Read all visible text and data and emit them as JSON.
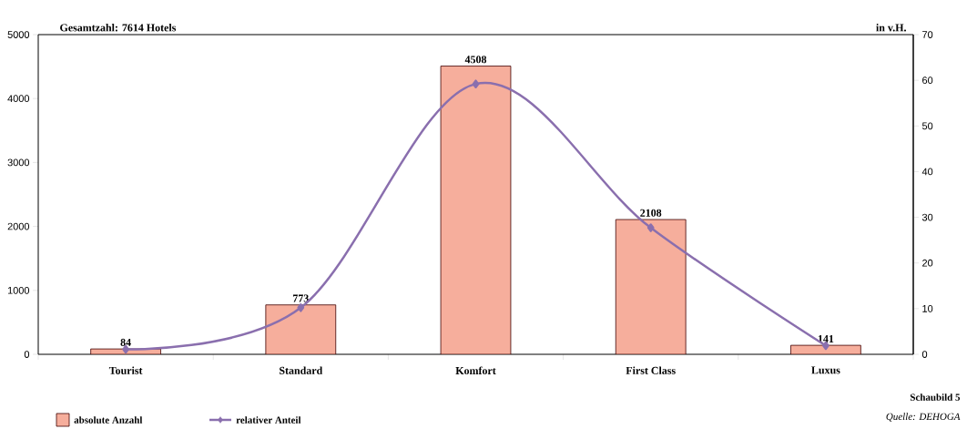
{
  "chart_data": {
    "type": "bar",
    "title": "Gesamtzahl: 7614 Hotels",
    "y2label": "in v.H.",
    "categories": [
      "Tourist",
      "Standard",
      "Komfort",
      "First Class",
      "Luxus"
    ],
    "series": [
      {
        "name": "absolute Anzahl",
        "color": "#f6ae9c",
        "values": [
          84,
          773,
          4508,
          2108,
          141
        ],
        "data_labels": true
      },
      {
        "name": "relativer Anteil",
        "type": "line",
        "axis": "y2",
        "color": "#8a6fae",
        "marker": "diamond",
        "values": [
          1.1,
          10.2,
          59.2,
          27.7,
          1.9
        ]
      }
    ],
    "ylim": [
      0,
      5000
    ],
    "yticks": [
      0,
      1000,
      2000,
      3000,
      4000,
      5000
    ],
    "y2lim": [
      0,
      70
    ],
    "y2ticks": [
      0,
      10,
      20,
      30,
      40,
      50,
      60,
      70
    ],
    "grid": false,
    "legend": "bottom left",
    "annotations": [
      "Schaubild 5",
      "*Quelle: DEHOGA*"
    ]
  }
}
